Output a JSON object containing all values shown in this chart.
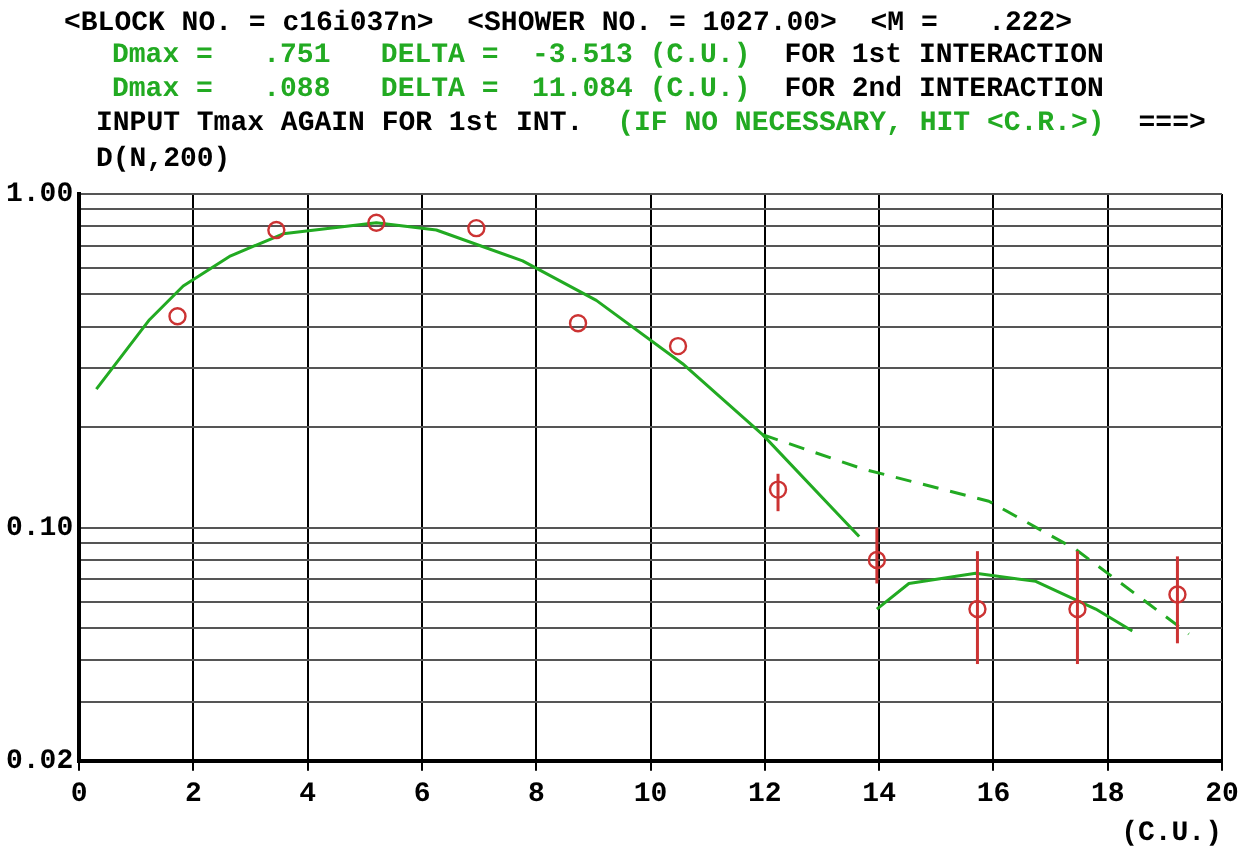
{
  "chart_data": {
    "type": "scatter",
    "title": "<BLOCK NO. = c16i037n>  <SHOWER NO. = 1027.00>  <M =   .222>",
    "annotations": [
      "Dmax =   .751   DELTA =  -3.513 (C.U.)",
      "FOR 1st INTERACTION",
      "Dmax =   .088   DELTA =  11.084 (C.U.)",
      "FOR 2nd INTERACTION",
      "INPUT Tmax AGAIN FOR 1st INT.",
      "(IF NO NECESSARY, HIT <C.R.>)",
      "===>"
    ],
    "xlabel": "(C.U.)",
    "ylabel": "D(N,200)",
    "xlim": [
      0,
      20
    ],
    "xticks": [
      0,
      2,
      4,
      6,
      8,
      10,
      12,
      14,
      16,
      18,
      20
    ],
    "ylim": [
      0.02,
      1
    ],
    "log": true,
    "yticks": [
      {
        "value": 0.02,
        "label": "0.02"
      },
      {
        "value": 0.03,
        "label": null
      },
      {
        "value": 0.04,
        "label": null
      },
      {
        "value": 0.05,
        "label": null
      },
      {
        "value": 0.06,
        "label": null
      },
      {
        "value": 0.07,
        "label": null
      },
      {
        "value": 0.08,
        "label": null
      },
      {
        "value": 0.09,
        "label": null
      },
      {
        "value": 0.1,
        "label": "0.10"
      },
      {
        "value": 0.2,
        "label": null
      },
      {
        "value": 0.3,
        "label": null
      },
      {
        "value": 0.4,
        "label": null
      },
      {
        "value": 0.5,
        "label": null
      },
      {
        "value": 0.6,
        "label": null
      },
      {
        "value": 0.7,
        "label": null
      },
      {
        "value": 0.8,
        "label": null
      },
      {
        "value": 0.9,
        "label": null
      },
      {
        "value": 1,
        "label": "1.00"
      }
    ],
    "grid": true,
    "legend": false,
    "series": [
      {
        "color": "#cc3333",
        "marker": "circle",
        "x": [
          1.72,
          3.45,
          5.2,
          6.95,
          8.73,
          10.48,
          12.23,
          13.96,
          15.72,
          17.47,
          19.22
        ],
        "values": [
          0.43,
          0.78,
          0.82,
          0.79,
          0.41,
          0.35,
          0.13,
          0.08,
          0.057,
          0.057,
          0.063
        ],
        "errors": [
          null,
          null,
          null,
          null,
          null,
          null,
          [
            0.112,
            0.145
          ],
          [
            0.068,
            0.1
          ],
          [
            0.039,
            0.085
          ],
          [
            0.039,
            0.085
          ],
          [
            0.045,
            0.082
          ]
        ]
      },
      {
        "type": "line",
        "color": "#22aa22",
        "line_style": "solid",
        "marker": "none",
        "x": [
          0.3,
          1.23,
          1.82,
          2.63,
          3.57,
          5.2,
          6.25,
          7.76,
          9.05,
          10.56,
          11.96,
          13.65
        ],
        "values": [
          0.26,
          0.42,
          0.53,
          0.65,
          0.76,
          0.82,
          0.78,
          0.63,
          0.48,
          0.31,
          0.19,
          0.094
        ]
      },
      {
        "type": "line",
        "color": "#22aa22",
        "line_style": "dashed",
        "marker": "none",
        "x": [
          11.96,
          13.71,
          15.92,
          17.44,
          18.72,
          19.42
        ],
        "values": [
          0.19,
          0.15,
          0.12,
          0.086,
          0.059,
          0.048
        ]
      },
      {
        "type": "line",
        "color": "#22aa22",
        "line_style": "solid",
        "marker": "none",
        "x": [
          13.96,
          14.52,
          15.69,
          16.74,
          17.79,
          18.43
        ],
        "values": [
          0.057,
          0.068,
          0.073,
          0.069,
          0.057,
          0.049
        ]
      }
    ]
  }
}
